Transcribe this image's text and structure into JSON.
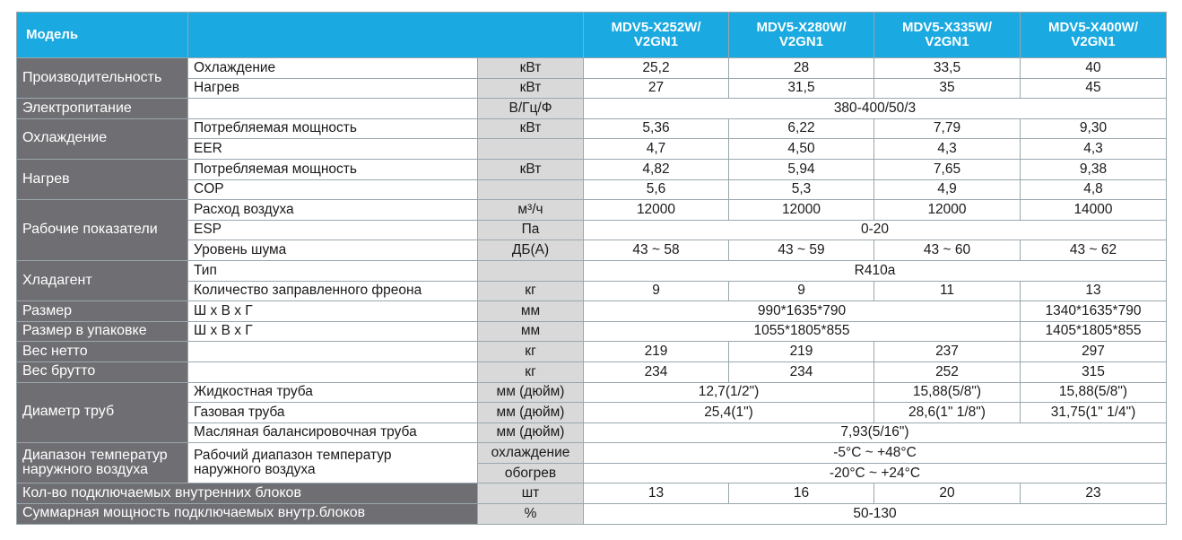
{
  "header": {
    "title": "Модель",
    "models": [
      "MDV5-X252W/\nV2GN1",
      "MDV5-X280W/\nV2GN1",
      "MDV5-X335W/\nV2GN1",
      "MDV5-X400W/\nV2GN1"
    ]
  },
  "rows": [
    {
      "cat": "Производительность",
      "span": 2,
      "sub": "Охлаждение",
      "unit": "кВт",
      "vals": [
        "25,2",
        "28",
        "33,5",
        "40"
      ]
    },
    {
      "sub": "Нагрев",
      "unit": "кВт",
      "vals": [
        "27",
        "31,5",
        "35",
        "45"
      ]
    },
    {
      "cat": "Электропитание",
      "span": 1,
      "sub": "",
      "unit": "В/Гц/Ф",
      "vals": [
        {
          "t": "380-400/50/3",
          "c": 4
        }
      ]
    },
    {
      "cat": "Охлаждение",
      "span": 2,
      "sub": "Потребляемая мощность",
      "unit": "кВт",
      "vals": [
        "5,36",
        "6,22",
        "7,79",
        "9,30"
      ]
    },
    {
      "sub": "EER",
      "unit": "",
      "vals": [
        "4,7",
        "4,50",
        "4,3",
        "4,3"
      ]
    },
    {
      "cat": "Нагрев",
      "span": 2,
      "sub": "Потребляемая мощность",
      "unit": "кВт",
      "vals": [
        "4,82",
        "5,94",
        "7,65",
        "9,38"
      ]
    },
    {
      "sub": "COP",
      "unit": "",
      "vals": [
        "5,6",
        "5,3",
        "4,9",
        "4,8"
      ]
    },
    {
      "cat": "Рабочие показатели",
      "span": 3,
      "sub": "Расход воздуха",
      "unit": "м³/ч",
      "vals": [
        "12000",
        "12000",
        "12000",
        "14000"
      ]
    },
    {
      "sub": "ESP",
      "unit": "Па",
      "vals": [
        {
          "t": "0-20",
          "c": 4
        }
      ]
    },
    {
      "sub": "Уровень шума",
      "unit": "ДБ(А)",
      "vals": [
        "43 ~ 58",
        "43 ~ 59",
        "43 ~ 60",
        "43 ~ 62"
      ]
    },
    {
      "cat": "Хладагент",
      "span": 2,
      "sub": "Тип",
      "unit": "",
      "vals": [
        {
          "t": "R410a",
          "c": 4
        }
      ]
    },
    {
      "sub": "Количество заправленного фреона",
      "unit": "кг",
      "vals": [
        "9",
        "9",
        "11",
        "13"
      ]
    },
    {
      "cat": "Размер",
      "span": 1,
      "sub": "Ш х В х Г",
      "unit": "мм",
      "vals": [
        {
          "t": "990*1635*790",
          "c": 3
        },
        "1340*1635*790"
      ]
    },
    {
      "cat": "Размер в упаковке",
      "span": 1,
      "sub": "Ш х В х Г",
      "unit": "мм",
      "vals": [
        {
          "t": "1055*1805*855",
          "c": 3
        },
        "1405*1805*855"
      ]
    },
    {
      "cat": "Вес нетто",
      "span": 1,
      "sub": "",
      "unit": "кг",
      "vals": [
        "219",
        "219",
        "237",
        "297"
      ]
    },
    {
      "cat": "Вес брутто",
      "span": 1,
      "sub": "",
      "unit": "кг",
      "vals": [
        "234",
        "234",
        "252",
        "315"
      ]
    },
    {
      "cat": "Диаметр труб",
      "span": 3,
      "sub": "Жидкостная труба",
      "unit": "мм (дюйм)",
      "vals": [
        {
          "t": "12,7(1/2\")",
          "c": 2
        },
        "15,88(5/8\")",
        "15,88(5/8\")"
      ]
    },
    {
      "sub": "Газовая труба",
      "unit": "мм (дюйм)",
      "vals": [
        {
          "t": "25,4(1\")",
          "c": 2
        },
        "28,6(1\" 1/8\")",
        "31,75(1\" 1/4\")"
      ]
    },
    {
      "sub": "Масляная балансировочная труба",
      "unit": "мм (дюйм)",
      "vals": [
        {
          "t": "7,93(5/16\")",
          "c": 4
        }
      ]
    },
    {
      "cat": "Диапазон температур\nнаружного воздуха",
      "span": 2,
      "sub": "Рабочий диапазон температур\nнаружного воздуха",
      "subspan": 2,
      "unit": "охлаждение",
      "vals": [
        {
          "t": "-5°C ~ +48°C",
          "c": 4
        }
      ]
    },
    {
      "subskip": true,
      "unit": "обогрев",
      "vals": [
        {
          "t": "-20°C ~ +24°C",
          "c": 4
        }
      ]
    },
    {
      "cat": "Кол-во подключаемых внутренних блоков",
      "span": 1,
      "catwide": true,
      "unit": "шт",
      "vals": [
        "13",
        "16",
        "20",
        "23"
      ]
    },
    {
      "cat": "Суммарная мощность подключаемых внутр.блоков",
      "span": 1,
      "catwide": true,
      "unit": "%",
      "vals": [
        {
          "t": "50-130",
          "c": 4
        }
      ]
    }
  ]
}
